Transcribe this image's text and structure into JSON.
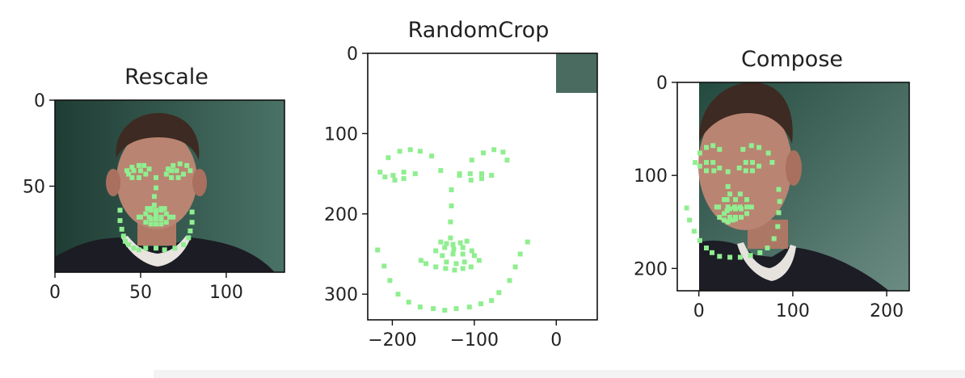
{
  "chart_data": [
    {
      "type": "scatter",
      "title": "Rescale",
      "xlim": [
        0,
        134
      ],
      "ylim": [
        100,
        0
      ],
      "xticks": [
        {
          "v": 0,
          "label": "0"
        },
        {
          "v": 50,
          "label": "50"
        },
        {
          "v": 100,
          "label": "100"
        }
      ],
      "yticks": [
        {
          "v": 0,
          "label": "0"
        },
        {
          "v": 50,
          "label": "50"
        }
      ],
      "image": {
        "extent_x": [
          0,
          134
        ],
        "extent_y": [
          0,
          100
        ],
        "background": "#2f4f44"
      },
      "marker_color": "#90ee90",
      "landmarks": {
        "x": [
          38,
          38,
          39,
          40,
          41,
          43,
          46,
          49,
          53,
          59,
          64,
          70,
          75,
          78,
          79,
          80,
          80,
          42,
          45,
          49,
          52,
          55,
          66,
          69,
          73,
          77,
          79,
          59,
          59,
          58,
          58,
          54,
          56,
          59,
          62,
          64,
          43,
          46,
          50,
          53,
          49,
          45,
          65,
          68,
          71,
          75,
          72,
          68,
          49,
          53,
          56,
          59,
          62,
          65,
          69,
          65,
          62,
          59,
          56,
          53,
          50,
          55,
          59,
          62,
          67,
          62,
          59,
          56
        ],
        "y": [
          64,
          70,
          75,
          79,
          82,
          84,
          86,
          87,
          86,
          86,
          87,
          86,
          84,
          80,
          76,
          71,
          65,
          41,
          39,
          38,
          38,
          40,
          40,
          38,
          37,
          38,
          41,
          45,
          51,
          56,
          61,
          63,
          63,
          64,
          63,
          63,
          43,
          41,
          41,
          43,
          45,
          45,
          43,
          41,
          41,
          43,
          45,
          45,
          68,
          66,
          64,
          66,
          64,
          66,
          68,
          71,
          72,
          72,
          72,
          71,
          68,
          68,
          68,
          68,
          68,
          69,
          69,
          69
        ]
      }
    },
    {
      "type": "scatter",
      "title": "RandomCrop",
      "xlim": [
        -230,
        50
      ],
      "ylim": [
        332,
        0
      ],
      "xticks": [
        {
          "v": -200,
          "label": "−200"
        },
        {
          "v": -100,
          "label": "−100"
        },
        {
          "v": 0,
          "label": "0"
        }
      ],
      "yticks": [
        {
          "v": 0,
          "label": "0"
        },
        {
          "v": 100,
          "label": "100"
        },
        {
          "v": 200,
          "label": "200"
        },
        {
          "v": 300,
          "label": "300"
        }
      ],
      "image": {
        "extent_x": [
          0,
          50
        ],
        "extent_y": [
          0,
          50
        ],
        "background": "#4a6b60"
      },
      "marker_color": "#90ee90",
      "landmarks": {
        "x": [
          -218,
          -210,
          -203,
          -193,
          -180,
          -166,
          -150,
          -136,
          -122,
          -106,
          -92,
          -79,
          -70,
          -57,
          -50,
          -44,
          -35,
          -215,
          -205,
          -191,
          -178,
          -166,
          -152,
          -141,
          -118,
          -103,
          -89,
          -76,
          -65,
          -60,
          -128,
          -128,
          -129,
          -129,
          -141,
          -134,
          -126,
          -117,
          -109,
          -209,
          -199,
          -186,
          -172,
          -186,
          -197,
          -118,
          -105,
          -91,
          -79,
          -91,
          -104,
          -165,
          -147,
          -136,
          -125,
          -114,
          -103,
          -94,
          -104,
          -114,
          -124,
          -135,
          -147,
          -159,
          -139,
          -126,
          -114,
          -100,
          -112,
          -122,
          -134
        ],
        "y": [
          245,
          265,
          283,
          300,
          310,
          316,
          318,
          320,
          318,
          316,
          312,
          308,
          298,
          283,
          266,
          250,
          235,
          148,
          130,
          122,
          120,
          122,
          128,
          146,
          150,
          133,
          124,
          120,
          123,
          133,
          170,
          190,
          210,
          230,
          235,
          237,
          238,
          236,
          234,
          154,
          152,
          148,
          150,
          156,
          158,
          152,
          150,
          150,
          152,
          156,
          158,
          258,
          246,
          242,
          244,
          242,
          246,
          258,
          266,
          268,
          270,
          268,
          266,
          262,
          252,
          250,
          250,
          252,
          260,
          262,
          260
        ]
      }
    },
    {
      "type": "scatter",
      "title": "Compose",
      "xlim": [
        -23,
        224
      ],
      "ylim": [
        224,
        0
      ],
      "xticks": [
        {
          "v": 0,
          "label": "0"
        },
        {
          "v": 100,
          "label": "100"
        },
        {
          "v": 200,
          "label": "200"
        }
      ],
      "yticks": [
        {
          "v": 0,
          "label": "0"
        },
        {
          "v": 100,
          "label": "100"
        },
        {
          "v": 200,
          "label": "200"
        }
      ],
      "image": {
        "extent_x": [
          0,
          224
        ],
        "extent_y": [
          0,
          224
        ],
        "background": "#2f4f44"
      },
      "marker_color": "#90ee90",
      "landmarks": {
        "x": [
          -13,
          -10,
          -5,
          1,
          8,
          14,
          22,
          33,
          44,
          55,
          65,
          73,
          80,
          84,
          85,
          86,
          85,
          -4,
          1,
          8,
          15,
          22,
          47,
          56,
          64,
          74,
          78,
          31,
          31,
          30,
          30,
          22,
          27,
          31,
          36,
          39,
          1,
          8,
          15,
          22,
          16,
          8,
          43,
          50,
          57,
          64,
          57,
          50,
          19,
          27,
          33,
          39,
          44,
          51,
          56,
          51,
          45,
          39,
          33,
          27,
          21,
          31,
          38,
          44,
          51,
          45,
          39,
          33
        ],
        "y": [
          135,
          148,
          160,
          170,
          178,
          183,
          187,
          188,
          188,
          186,
          183,
          178,
          168,
          155,
          140,
          128,
          115,
          86,
          76,
          70,
          68,
          72,
          72,
          68,
          70,
          76,
          86,
          96,
          112,
          126,
          138,
          145,
          148,
          150,
          148,
          145,
          90,
          86,
          86,
          92,
          95,
          95,
          92,
          86,
          86,
          90,
          95,
          95,
          134,
          126,
          120,
          126,
          120,
          126,
          134,
          141,
          145,
          147,
          145,
          141,
          134,
          134,
          134,
          134,
          134,
          136,
          136,
          136
        ]
      }
    }
  ]
}
